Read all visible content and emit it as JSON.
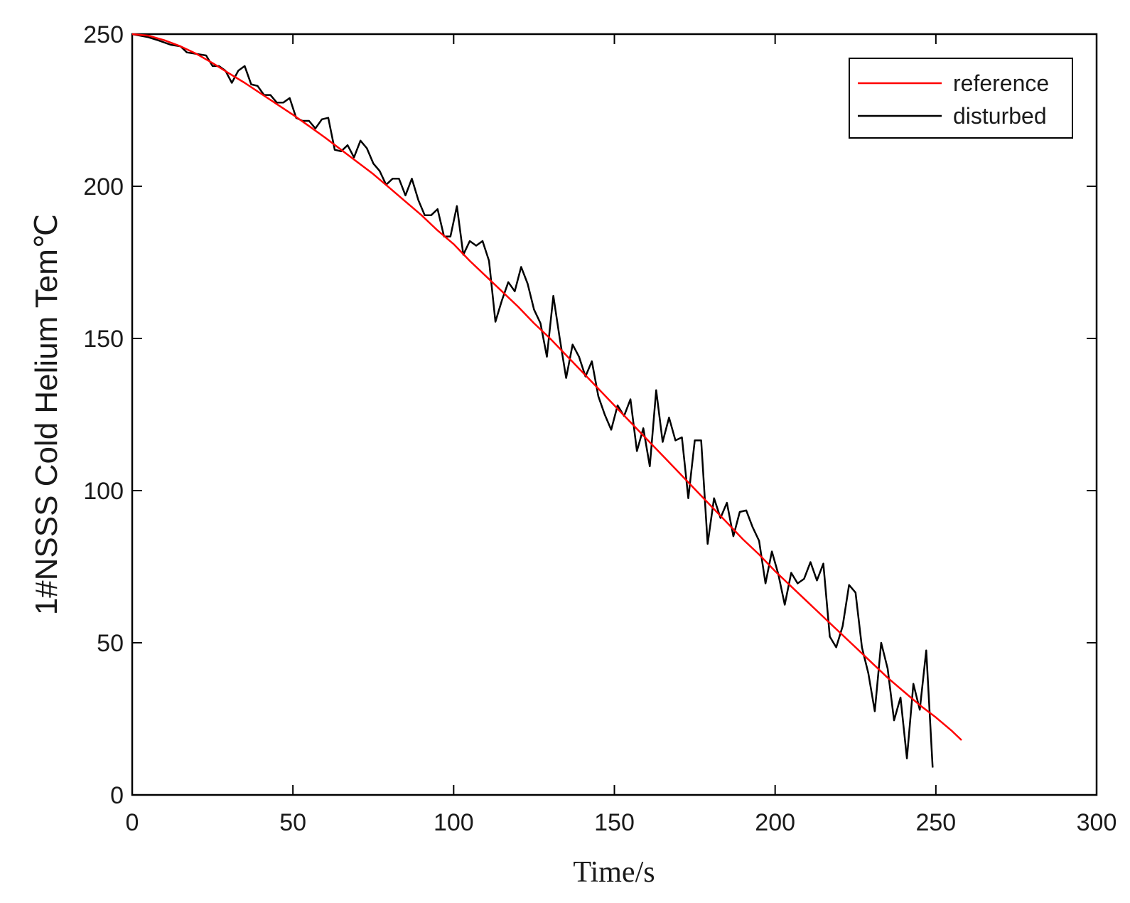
{
  "chart_data": {
    "type": "line",
    "title": "",
    "xlabel": "Time/s",
    "ylabel": "1#NSSS Cold Helium Tem℃",
    "xlim": [
      0,
      300
    ],
    "ylim": [
      0,
      250
    ],
    "xticks": [
      0,
      50,
      100,
      150,
      200,
      250,
      300
    ],
    "yticks": [
      0,
      50,
      100,
      150,
      200,
      250
    ],
    "grid": false,
    "legend_position": "top-right",
    "series": [
      {
        "name": "reference",
        "color": "#ff0000",
        "x": [
          0,
          5,
          10,
          15,
          20,
          25,
          30,
          35,
          40,
          45,
          50,
          55,
          60,
          65,
          70,
          75,
          80,
          85,
          90,
          95,
          100,
          105,
          110,
          115,
          120,
          125,
          130,
          135,
          140,
          145,
          150,
          155,
          160,
          165,
          170,
          175,
          180,
          185,
          190,
          195,
          200,
          205,
          210,
          215,
          220,
          225,
          230,
          235,
          240,
          245,
          250,
          255,
          258
        ],
        "y": [
          250,
          249.5,
          248,
          246,
          243.5,
          240.5,
          237.2,
          234,
          230.5,
          227,
          223.5,
          219.8,
          216,
          212,
          208,
          204,
          199.5,
          195,
          190.5,
          185.5,
          181,
          175.5,
          170.5,
          165.5,
          160.5,
          155,
          150,
          144.5,
          139,
          133.5,
          128,
          122.5,
          117,
          111.5,
          106,
          100.5,
          95,
          89.5,
          84,
          79,
          73.5,
          68.5,
          63.5,
          58.5,
          53.5,
          48.5,
          43.5,
          38.5,
          34,
          29.5,
          25.5,
          21,
          18
        ]
      },
      {
        "name": "disturbed",
        "color": "#000000",
        "x": [
          0,
          5,
          8,
          12,
          15,
          17,
          20,
          23,
          25,
          27,
          29,
          31,
          33,
          35,
          37,
          39,
          41,
          43,
          45,
          47,
          49,
          51,
          53,
          55,
          57,
          59,
          61,
          63,
          65,
          67,
          69,
          71,
          73,
          75,
          77,
          79,
          81,
          83,
          85,
          87,
          89,
          91,
          93,
          95,
          97,
          99,
          101,
          103,
          105,
          107,
          109,
          111,
          113,
          115,
          117,
          119,
          121,
          123,
          125,
          127,
          129,
          131,
          133,
          135,
          137,
          139,
          141,
          143,
          145,
          147,
          149,
          151,
          153,
          155,
          157,
          159,
          161,
          163,
          165,
          167,
          169,
          171,
          173,
          175,
          177,
          179,
          181,
          183,
          185,
          187,
          189,
          191,
          193,
          195,
          197,
          199,
          201,
          203,
          205,
          207,
          209,
          211,
          213,
          215,
          217,
          219,
          221,
          223,
          225,
          227,
          229,
          231,
          233,
          235,
          237,
          239,
          241,
          243,
          245,
          247,
          249
        ],
        "y": [
          250,
          249,
          248,
          246.5,
          246,
          244,
          243.5,
          243,
          239.5,
          239.5,
          238,
          234,
          238,
          239.5,
          233.5,
          233,
          230,
          230,
          227.5,
          227.5,
          229,
          222.5,
          221.5,
          221.5,
          219,
          222,
          222.5,
          212,
          211.5,
          213.5,
          209.5,
          215,
          212.5,
          207.5,
          205,
          200.5,
          202.5,
          202.5,
          197,
          202.5,
          195.5,
          190.5,
          190.5,
          192.5,
          183.5,
          183.5,
          193.5,
          177.5,
          182,
          180.5,
          182,
          175.5,
          155.5,
          162.5,
          168.5,
          165.5,
          173.5,
          168,
          159.5,
          155,
          144,
          164,
          150,
          137,
          148,
          144,
          137.5,
          142.5,
          131,
          125,
          120,
          128,
          124.5,
          130,
          113,
          120.5,
          108,
          133,
          116,
          124,
          116.5,
          117.5,
          97.5,
          116.5,
          116.5,
          82.5,
          97.5,
          91,
          96,
          85,
          93,
          93.5,
          88,
          83.5,
          69.5,
          80,
          72.5,
          62.5,
          73,
          69.5,
          71,
          76.5,
          70.5,
          76,
          52,
          48.5,
          55.5,
          69,
          66.5,
          48.5,
          40,
          27.5,
          50,
          41.5,
          24.5,
          32,
          12,
          36.5,
          28,
          47.5,
          9
        ]
      }
    ]
  }
}
